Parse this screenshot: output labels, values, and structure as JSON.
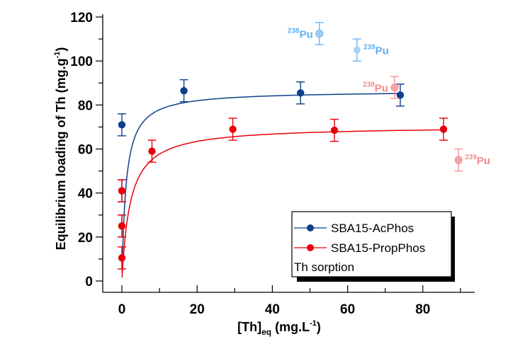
{
  "chart_data": {
    "type": "scatter",
    "title": "",
    "xlabel": {
      "main": "[Th]",
      "sub": "eq",
      "rest": " (mg.L",
      "sup": "-1",
      "end": ")"
    },
    "ylabel": {
      "main": "Equilibrium loading of Th (mg.g",
      "sup": "-1",
      "end": ")"
    },
    "xlim": [
      -5,
      95
    ],
    "ylim": [
      -5,
      125
    ],
    "xticks": [
      0,
      20,
      40,
      60,
      80
    ],
    "xminor": [
      10,
      30,
      50,
      70,
      90
    ],
    "yticks": [
      0,
      20,
      40,
      60,
      80,
      100,
      120
    ],
    "yminor": [
      10,
      30,
      50,
      70,
      90,
      110
    ],
    "grid": false,
    "legend": {
      "position": "bottom-right",
      "entries": [
        "SBA15-AcPhos",
        "SBA15-PropPhos"
      ],
      "note": "Th sorption"
    },
    "series": [
      {
        "name": "SBA15-AcPhos",
        "color": "#0d3f8a",
        "points": [
          {
            "x": 0,
            "y": 71,
            "err": 5
          },
          {
            "x": 16.5,
            "y": 86.5,
            "err": 5
          },
          {
            "x": 47.5,
            "y": 85.5,
            "err": 5
          },
          {
            "x": 74,
            "y": 84.5,
            "err": 5
          },
          {
            "x": 0,
            "y": 41,
            "err": 5
          },
          {
            "x": 0,
            "y": 25,
            "err": 5
          }
        ],
        "fit": {
          "model": "langmuir",
          "qmax": 86.5,
          "K": 0.9,
          "xmin": 0.05,
          "xmax": 74
        }
      },
      {
        "name": "SBA15-PropPhos",
        "color": "#e8000b",
        "points": [
          {
            "x": 0,
            "y": 41,
            "err": 5
          },
          {
            "x": 0,
            "y": 25,
            "err": 5
          },
          {
            "x": 0,
            "y": 10.5,
            "err": 5
          },
          {
            "x": 8,
            "y": 59,
            "err": 5
          },
          {
            "x": 29.5,
            "y": 69,
            "err": 5
          },
          {
            "x": 56.5,
            "y": 68.5,
            "err": 5
          },
          {
            "x": 85.5,
            "y": 69,
            "err": 5
          }
        ],
        "fit": {
          "model": "langmuir",
          "qmax": 70.5,
          "K": 0.45,
          "xmin": 0.05,
          "xmax": 85.5
        }
      }
    ],
    "annotations": [
      {
        "label_sup": "238",
        "label": "Pu",
        "x": 52.5,
        "y": 112.5,
        "err": 5,
        "color": "#62aef0",
        "fill": "#a9d1f5",
        "ring": true,
        "text_side": "left"
      },
      {
        "label_sup": "239",
        "label": "Pu",
        "x": 62.5,
        "y": 105,
        "err": 5,
        "color": "#62aef0",
        "fill": "#a9d1f5",
        "ring": false,
        "text_side": "right"
      },
      {
        "label_sup": "238",
        "label": "Pu",
        "x": 72.5,
        "y": 88,
        "err": 5,
        "color": "#f48a8a",
        "fill": "#f7aaaa",
        "ring": true,
        "text_side": "left"
      },
      {
        "label_sup": "239",
        "label": "Pu",
        "x": 89.5,
        "y": 55,
        "err": 5,
        "color": "#f48a8a",
        "fill": "#f7aaaa",
        "ring": true,
        "text_side": "right"
      }
    ]
  }
}
